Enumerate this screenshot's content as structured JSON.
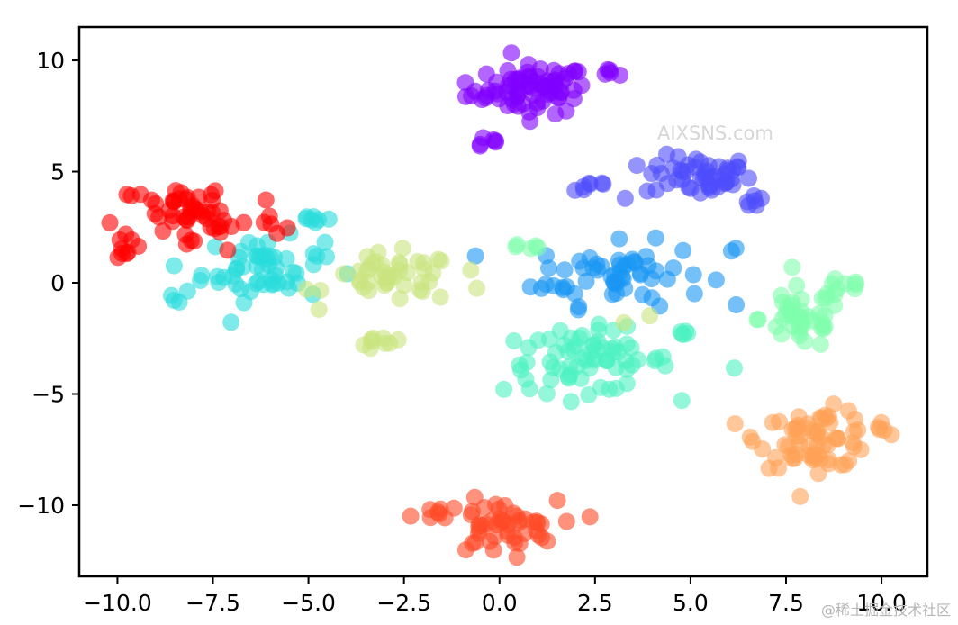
{
  "watermarks": {
    "primary": "AIXSNS.com",
    "corner": "@稀土掘金技术社区"
  },
  "chart_data": {
    "type": "scatter",
    "title": "",
    "xlabel": "",
    "ylabel": "",
    "xlim": [
      -11,
      11.2
    ],
    "ylim": [
      -13.2,
      11.5
    ],
    "x_ticks": [
      -10.0,
      -7.5,
      -5.0,
      -2.5,
      0.0,
      2.5,
      5.0,
      7.5,
      10.0
    ],
    "x_tick_labels": [
      "−10.0",
      "−7.5",
      "−5.0",
      "−2.5",
      "0.0",
      "2.5",
      "5.0",
      "7.5",
      "10.0"
    ],
    "y_ticks": [
      -10,
      -5,
      0,
      5,
      10
    ],
    "y_tick_labels": [
      "−10",
      "−5",
      "0",
      "5",
      "10"
    ],
    "grid": false,
    "legend": "none",
    "marker_alpha": 0.6,
    "clusters": [
      {
        "color": "#8000ff",
        "groups": [
          {
            "cx": 1.0,
            "cy": 8.7,
            "sx": 0.65,
            "sy": 0.55,
            "n": 70
          },
          {
            "cx": -0.7,
            "cy": 8.5,
            "sx": 0.3,
            "sy": 0.2,
            "n": 6
          },
          {
            "cx": 2.9,
            "cy": 9.4,
            "sx": 0.12,
            "sy": 0.12,
            "n": 5
          },
          {
            "cx": -0.4,
            "cy": 6.4,
            "sx": 0.25,
            "sy": 0.2,
            "n": 6
          },
          {
            "cx": 0.3,
            "cy": 10.3,
            "sx": 0.05,
            "sy": 0.05,
            "n": 1
          }
        ]
      },
      {
        "color": "#4f4cfc",
        "groups": [
          {
            "cx": 5.2,
            "cy": 4.8,
            "sx": 0.7,
            "sy": 0.45,
            "n": 50
          },
          {
            "cx": 6.7,
            "cy": 3.7,
            "sx": 0.2,
            "sy": 0.2,
            "n": 6
          },
          {
            "cx": 2.3,
            "cy": 4.4,
            "sx": 0.35,
            "sy": 0.2,
            "n": 7
          },
          {
            "cx": 3.3,
            "cy": 3.8,
            "sx": 0.05,
            "sy": 0.05,
            "n": 1
          }
        ]
      },
      {
        "color": "#1996f3",
        "groups": [
          {
            "cx": 3.2,
            "cy": 0.4,
            "sx": 1.1,
            "sy": 0.7,
            "n": 55
          },
          {
            "cx": 1.4,
            "cy": -0.1,
            "sx": 0.2,
            "sy": 0.2,
            "n": 4
          },
          {
            "cx": 6.1,
            "cy": 1.5,
            "sx": 0.08,
            "sy": 0.08,
            "n": 2
          }
        ]
      },
      {
        "color": "#2adcdc",
        "groups": [
          {
            "cx": -6.2,
            "cy": 0.6,
            "sx": 0.8,
            "sy": 0.7,
            "n": 55
          },
          {
            "cx": -4.8,
            "cy": 2.9,
            "sx": 0.25,
            "sy": 0.15,
            "n": 7
          },
          {
            "cx": -8.4,
            "cy": -0.5,
            "sx": 0.25,
            "sy": 0.3,
            "n": 4
          }
        ]
      },
      {
        "color": "#4df1c2",
        "groups": [
          {
            "cx": 2.3,
            "cy": -3.5,
            "sx": 1.1,
            "sy": 0.7,
            "n": 70
          },
          {
            "cx": 4.8,
            "cy": -2.3,
            "sx": 0.1,
            "sy": 0.3,
            "n": 5
          },
          {
            "cx": 6.1,
            "cy": -3.8,
            "sx": 0.05,
            "sy": 0.05,
            "n": 1
          }
        ]
      },
      {
        "color": "#7ffeac",
        "groups": [
          {
            "cx": 7.9,
            "cy": -1.6,
            "sx": 0.55,
            "sy": 0.7,
            "n": 40
          },
          {
            "cx": 9.0,
            "cy": -0.2,
            "sx": 0.45,
            "sy": 0.2,
            "n": 8
          },
          {
            "cx": 0.8,
            "cy": 1.6,
            "sx": 0.25,
            "sy": 0.08,
            "n": 5
          }
        ]
      },
      {
        "color": "#c9e47e",
        "groups": [
          {
            "cx": -2.8,
            "cy": 0.2,
            "sx": 0.85,
            "sy": 0.55,
            "n": 45
          },
          {
            "cx": -3.0,
            "cy": -2.6,
            "sx": 0.35,
            "sy": 0.2,
            "n": 9
          },
          {
            "cx": -0.6,
            "cy": -0.3,
            "sx": 0.05,
            "sy": 0.05,
            "n": 1
          },
          {
            "cx": 4.0,
            "cy": -1.5,
            "sx": 0.05,
            "sy": 0.05,
            "n": 1
          },
          {
            "cx": 3.2,
            "cy": -1.8,
            "sx": 0.05,
            "sy": 0.05,
            "n": 1
          }
        ]
      },
      {
        "color": "#ffa256",
        "groups": [
          {
            "cx": 8.3,
            "cy": -7.0,
            "sx": 0.75,
            "sy": 0.65,
            "n": 65
          },
          {
            "cx": 9.9,
            "cy": -6.5,
            "sx": 0.15,
            "sy": 0.2,
            "n": 5
          }
        ]
      },
      {
        "color": "#ff4a26",
        "groups": [
          {
            "cx": 0.0,
            "cy": -11.0,
            "sx": 0.75,
            "sy": 0.6,
            "n": 50
          },
          {
            "cx": -1.7,
            "cy": -10.5,
            "sx": 0.3,
            "sy": 0.2,
            "n": 7
          }
        ]
      },
      {
        "color": "#ff0000",
        "groups": [
          {
            "cx": -7.9,
            "cy": 3.0,
            "sx": 1.1,
            "sy": 0.85,
            "n": 60
          },
          {
            "cx": -9.8,
            "cy": 1.6,
            "sx": 0.15,
            "sy": 0.35,
            "n": 7
          }
        ]
      }
    ]
  }
}
